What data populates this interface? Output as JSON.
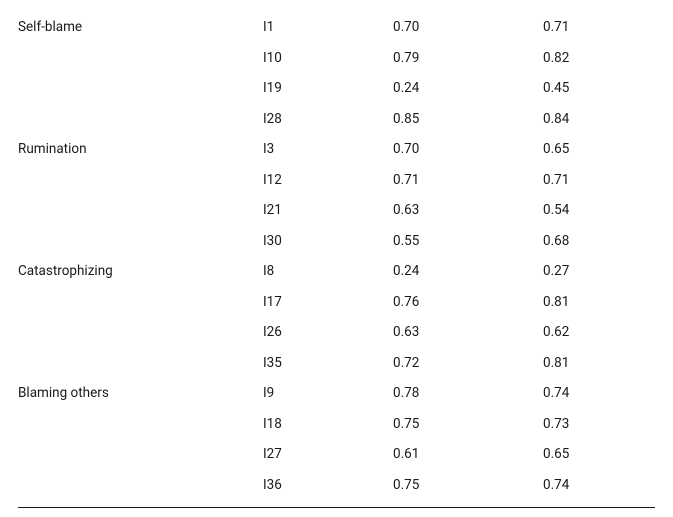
{
  "table": {
    "rows": [
      {
        "label": "Self-blame",
        "item": "I1",
        "v1": "0.70",
        "v2": "0.71"
      },
      {
        "label": "",
        "item": "I10",
        "v1": "0.79",
        "v2": "0.82"
      },
      {
        "label": "",
        "item": "I19",
        "v1": "0.24",
        "v2": "0.45"
      },
      {
        "label": "",
        "item": "I28",
        "v1": "0.85",
        "v2": "0.84"
      },
      {
        "label": "Rumination",
        "item": "I3",
        "v1": "0.70",
        "v2": "0.65"
      },
      {
        "label": "",
        "item": "I12",
        "v1": "0.71",
        "v2": "0.71"
      },
      {
        "label": "",
        "item": "I21",
        "v1": "0.63",
        "v2": "0.54"
      },
      {
        "label": "",
        "item": "I30",
        "v1": "0.55",
        "v2": "0.68"
      },
      {
        "label": "Catastrophizing",
        "item": "I8",
        "v1": "0.24",
        "v2": "0.27"
      },
      {
        "label": "",
        "item": "I17",
        "v1": "0.76",
        "v2": "0.81"
      },
      {
        "label": "",
        "item": "I26",
        "v1": "0.63",
        "v2": "0.62"
      },
      {
        "label": "",
        "item": "I35",
        "v1": "0.72",
        "v2": "0.81"
      },
      {
        "label": "Blaming others",
        "item": "I9",
        "v1": "0.78",
        "v2": "0.74"
      },
      {
        "label": "",
        "item": "I18",
        "v1": "0.75",
        "v2": "0.73"
      },
      {
        "label": "",
        "item": "I27",
        "v1": "0.61",
        "v2": "0.65"
      },
      {
        "label": "",
        "item": "I36",
        "v1": "0.75",
        "v2": "0.74"
      }
    ]
  }
}
